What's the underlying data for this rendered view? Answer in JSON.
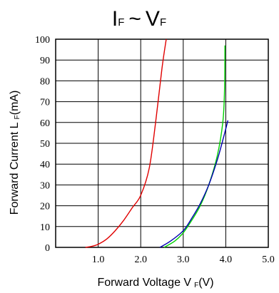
{
  "chart_data": {
    "type": "line",
    "title": {
      "main1": "I",
      "sub1": "F",
      "tilde": "~",
      "main2": "V",
      "sub2": "F"
    },
    "xlabel": {
      "text": "Forward Voltage V",
      "sub": "F",
      "unit": "(V)"
    },
    "ylabel": {
      "text": "Forward Current L",
      "sub": "F",
      "unit": "(mA)"
    },
    "xlim": [
      0,
      5
    ],
    "ylim": [
      0,
      100
    ],
    "x_ticks": [
      "1.0",
      "2.0",
      "3.0",
      "4.0",
      "5.0"
    ],
    "y_ticks": [
      "0",
      "10",
      "20",
      "30",
      "40",
      "50",
      "60",
      "70",
      "80",
      "90",
      "100"
    ],
    "grid": true,
    "legend": "none",
    "series": [
      {
        "color": "#e00000",
        "points": [
          [
            0.7,
            0
          ],
          [
            0.85,
            0.5
          ],
          [
            1.0,
            1.5
          ],
          [
            1.2,
            4
          ],
          [
            1.4,
            8
          ],
          [
            1.6,
            13
          ],
          [
            1.8,
            19
          ],
          [
            2.0,
            25
          ],
          [
            2.2,
            38
          ],
          [
            2.35,
            60
          ],
          [
            2.5,
            86
          ],
          [
            2.6,
            100
          ]
        ]
      },
      {
        "color": "#00d000",
        "points": [
          [
            2.55,
            0
          ],
          [
            2.8,
            3
          ],
          [
            3.0,
            7
          ],
          [
            3.2,
            13
          ],
          [
            3.4,
            20
          ],
          [
            3.6,
            30
          ],
          [
            3.8,
            44
          ],
          [
            3.93,
            60
          ],
          [
            3.97,
            75
          ],
          [
            3.98,
            97
          ]
        ]
      },
      {
        "color": "#0000b0",
        "points": [
          [
            2.45,
            0
          ],
          [
            2.7,
            3
          ],
          [
            3.0,
            8
          ],
          [
            3.2,
            14
          ],
          [
            3.4,
            21
          ],
          [
            3.6,
            30
          ],
          [
            3.8,
            42
          ],
          [
            3.95,
            53
          ],
          [
            4.05,
            61
          ]
        ]
      }
    ]
  }
}
